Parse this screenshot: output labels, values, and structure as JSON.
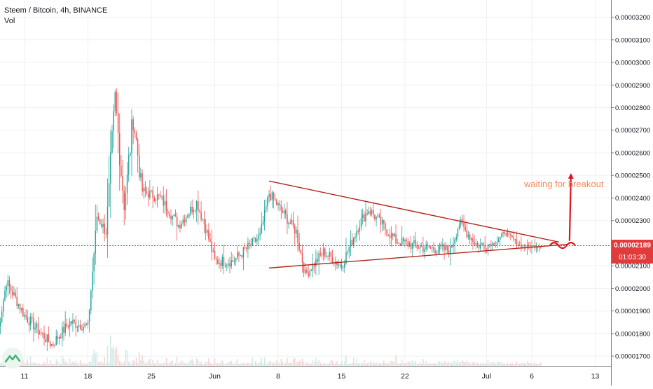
{
  "header": {
    "symbol": "Steem / Bitcoin, 4h, BINANCE",
    "volume_label": "Vol"
  },
  "price_tags": {
    "last_price": "0.00002189",
    "countdown": "01:03:30"
  },
  "annotation": {
    "text": "waiting for breakout"
  },
  "colors": {
    "up": "#26a69a",
    "down": "#ef5350",
    "line": "#b2261c",
    "annotation": "#f08a63",
    "arrow": "#e0121b",
    "last_price": "#e13b3b"
  },
  "chart_data": {
    "type": "candlestick",
    "title": "Steem / Bitcoin, 4h, BINANCE",
    "ylim": [
      1.66e-05,
      3.27e-05
    ],
    "y_ticks": [
      "0.00001700",
      "0.00001800",
      "0.00001900",
      "0.00002000",
      "0.00002100",
      "0.00002200",
      "0.00002300",
      "0.00002400",
      "0.00002500",
      "0.00002600",
      "0.00002700",
      "0.00002800",
      "0.00002900",
      "0.00003000",
      "0.00003100",
      "0.00003200"
    ],
    "x_ticks": [
      "11",
      "18",
      "25",
      "Jun",
      "8",
      "15",
      "22",
      "Jul",
      "6",
      "13"
    ],
    "last_price": 2.189e-05,
    "trendlines": [
      {
        "name": "upper",
        "from": [
          "Jun 7",
          2.475e-05
        ],
        "to": [
          "Jul 9",
          2.205e-05
        ]
      },
      {
        "name": "lower",
        "from": [
          "Jun 7",
          2.09e-05
        ],
        "to": [
          "Jul 10",
          2.195e-05
        ]
      }
    ],
    "anchors": [
      {
        "date": "May 8",
        "price": 1.79e-05
      },
      {
        "date": "May 9",
        "price": 2.03e-05
      },
      {
        "date": "May 11",
        "price": 1.88e-05
      },
      {
        "date": "May 14",
        "price": 1.75e-05
      },
      {
        "date": "May 16",
        "price": 1.85e-05
      },
      {
        "date": "May 18",
        "price": 1.83e-05
      },
      {
        "date": "May 19",
        "price": 2.32e-05
      },
      {
        "date": "May 20",
        "price": 2.25e-05
      },
      {
        "date": "May 21",
        "price": 2.84e-05
      },
      {
        "date": "May 22",
        "price": 2.36e-05
      },
      {
        "date": "May 23",
        "price": 2.76e-05
      },
      {
        "date": "May 24",
        "price": 2.43e-05
      },
      {
        "date": "May 26",
        "price": 2.4e-05
      },
      {
        "date": "May 28",
        "price": 2.28e-05
      },
      {
        "date": "May 30",
        "price": 2.38e-05
      },
      {
        "date": "May 31",
        "price": 2.27e-05
      },
      {
        "date": "Jun 1",
        "price": 2.12e-05
      },
      {
        "date": "Jun 3",
        "price": 2.12e-05
      },
      {
        "date": "Jun 6",
        "price": 2.23e-05
      },
      {
        "date": "Jun 7",
        "price": 2.42e-05
      },
      {
        "date": "Jun 10",
        "price": 2.25e-05
      },
      {
        "date": "Jun 11",
        "price": 2.06e-05
      },
      {
        "date": "Jun 13",
        "price": 2.16e-05
      },
      {
        "date": "Jun 15",
        "price": 2.1e-05
      },
      {
        "date": "Jun 17",
        "price": 2.29e-05
      },
      {
        "date": "Jun 18",
        "price": 2.35e-05
      },
      {
        "date": "Jun 21",
        "price": 2.21e-05
      },
      {
        "date": "Jun 24",
        "price": 2.18e-05
      },
      {
        "date": "Jun 27",
        "price": 2.17e-05
      },
      {
        "date": "Jun 28",
        "price": 2.29e-05
      },
      {
        "date": "Jun 30",
        "price": 2.19e-05
      },
      {
        "date": "Jul 2",
        "price": 2.2e-05
      },
      {
        "date": "Jul 3",
        "price": 2.25e-05
      },
      {
        "date": "Jul 5",
        "price": 2.18e-05
      },
      {
        "date": "Jul 7",
        "price": 2.19e-05
      }
    ]
  }
}
